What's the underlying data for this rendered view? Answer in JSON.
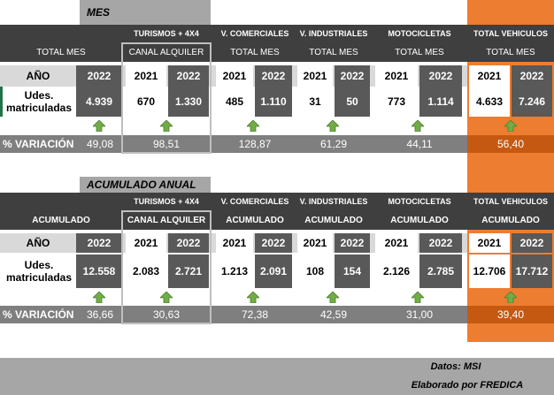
{
  "mes": {
    "title": "MES",
    "groups": {
      "turismos": "TURISMOS + 4X4",
      "comerciales": "V. COMERCIALES",
      "industriales": "V. INDUSTRIALES",
      "motocicletas": "MOTOCICLETAS",
      "total": "TOTAL VEHICULOS"
    },
    "subs": {
      "turismos_total": "TOTAL MES",
      "turismos_canal": "CANAL ALQUILER",
      "comerciales": "TOTAL MES",
      "industriales": "TOTAL MES",
      "motocicletas": "TOTAL MES",
      "total": "TOTAL MES"
    },
    "anio_label": "AÑO",
    "years": {
      "t_total": "2022",
      "t_canal_a": "2021",
      "t_canal_b": "2022",
      "c_a": "2021",
      "c_b": "2022",
      "i_a": "2021",
      "i_b": "2022",
      "m_a": "2021",
      "m_b": "2022",
      "tv_a": "2021",
      "tv_b": "2022"
    },
    "udes_label_1": "Udes.",
    "udes_label_2": "matriculadas",
    "values": {
      "t_total": "4.939",
      "t_canal_a": "670",
      "t_canal_b": "1.330",
      "c_a": "485",
      "c_b": "1.110",
      "i_a": "31",
      "i_b": "50",
      "m_a": "773",
      "m_b": "1.114",
      "tv_a": "4.633",
      "tv_b": "7.246"
    },
    "variacion_label": "% VARIACIÓN",
    "variacion": {
      "turismos_total": "49,08",
      "canal": "98,51",
      "comerciales": "128,87",
      "industriales": "61,29",
      "motocicletas": "44,11",
      "total": "56,40"
    }
  },
  "acumulado": {
    "title": "ACUMULADO ANUAL",
    "groups": {
      "turismos": "TURISMOS + 4X4",
      "comerciales": "V. COMERCIALES",
      "industriales": "V. INDUSTRIALES",
      "motocicletas": "MOTOCICLETAS",
      "total": "TOTAL VEHICULOS"
    },
    "subs": {
      "turismos_total": "ACUMULADO",
      "turismos_canal": "CANAL ALQUILER",
      "comerciales": "ACUMULADO",
      "industriales": "ACUMULADO",
      "motocicletas": "ACUMULADO",
      "total": "ACUMULADO"
    },
    "anio_label": "AÑO",
    "years": {
      "t_total": "2022",
      "t_canal_a": "2021",
      "t_canal_b": "2022",
      "c_a": "2021",
      "c_b": "2022",
      "i_a": "2021",
      "i_b": "2022",
      "m_a": "2021",
      "m_b": "2022",
      "tv_a": "2021",
      "tv_b": "2022"
    },
    "udes_label_1": "Udes.",
    "udes_label_2": "matriculadas",
    "values": {
      "t_total": "12.558",
      "t_canal_a": "2.083",
      "t_canal_b": "2.721",
      "c_a": "1.213",
      "c_b": "2.091",
      "i_a": "108",
      "i_b": "154",
      "m_a": "2.126",
      "m_b": "2.785",
      "tv_a": "12.706",
      "tv_b": "17.712"
    },
    "variacion_label": "% VARIACIÓN",
    "variacion": {
      "turismos_total": "36,66",
      "canal": "30,63",
      "comerciales": "72,38",
      "industriales": "42,59",
      "motocicletas": "31,00",
      "total": "39,40"
    }
  },
  "footer": {
    "datos": "Datos: MSI",
    "elaborado": "Elaborado por  FREDICA"
  },
  "colors": {
    "dark_header": "#3f3f3f",
    "mid_gray": "#595959",
    "light_gray": "#d9d9d9",
    "band_gray": "#a6a6a6",
    "variation_gray": "#7f7f7f",
    "orange": "#ed7d31",
    "arrow_green": "#70ad47"
  },
  "icons": {
    "variation_arrow": "green-up-arrow-icon"
  }
}
